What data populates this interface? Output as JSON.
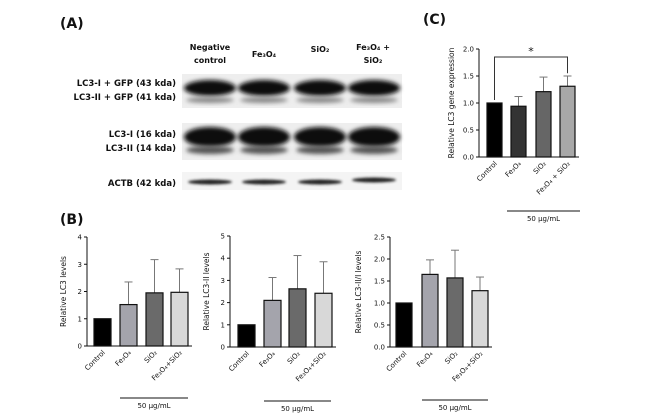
{
  "panels": {
    "a": "(A)",
    "b": "(B)",
    "c": "(C)"
  },
  "blot": {
    "columns": [
      "Negative",
      "control",
      "Fe₃O₄",
      "SiO₂",
      "Fe₃O₄ +",
      "SiO₂"
    ],
    "rows": [
      "LC3-I + GFP (43 kda)",
      "LC3-II + GFP (41 kda)",
      "LC3-I (16 kda)",
      "LC3-II (14 kda)",
      "ACTB (42 kda)"
    ]
  },
  "colors": {
    "control": "#000000",
    "fe_b": "#a4a4ac",
    "sio2_b": "#6a6a6a",
    "combo_b": "#d8d8d8",
    "fe_c": "#333333",
    "sio2_c": "#666666",
    "combo_c": "#a8a8a8"
  },
  "chart_data": [
    {
      "id": "c",
      "type": "bar",
      "title": "",
      "ylabel": "Relative LC3 gene expression",
      "ylim": [
        0,
        2.0
      ],
      "yticks": [
        "0.0",
        "0.5",
        "1.0",
        "1.5",
        "2.0"
      ],
      "categories": [
        "Control",
        "Fe₃O₄",
        "SiO₂",
        "Fe₃O₄ + SiO₂"
      ],
      "values": [
        1.0,
        0.94,
        1.21,
        1.31
      ],
      "errors": [
        0,
        0.18,
        0.27,
        0.19
      ],
      "significance": {
        "label": "*",
        "between": [
          "Control",
          "Fe₃O₄ + SiO₂"
        ]
      },
      "group_label": "50 μg/mL"
    },
    {
      "id": "b1",
      "type": "bar",
      "ylabel": "Relative LC3 levels",
      "ylim": [
        0,
        4
      ],
      "yticks": [
        "0",
        "1",
        "2",
        "3",
        "4"
      ],
      "categories": [
        "Control",
        "Fe₃O₄",
        "SiO₂",
        "Fe₃O₄+SiO₂"
      ],
      "values": [
        1.0,
        1.52,
        1.95,
        1.97
      ],
      "errors": [
        0,
        0.83,
        1.22,
        0.86
      ],
      "group_label": "50 μg/mL"
    },
    {
      "id": "b2",
      "type": "bar",
      "ylabel": "Relative LC3-II levels",
      "ylim": [
        0,
        5
      ],
      "yticks": [
        "0",
        "1",
        "2",
        "3",
        "4",
        "5"
      ],
      "categories": [
        "Control",
        "Fe₃O₄",
        "SiO₂",
        "Fe₃O₄+SiO₂"
      ],
      "values": [
        1.0,
        2.1,
        2.62,
        2.42
      ],
      "errors": [
        0,
        1.03,
        1.5,
        1.42
      ],
      "group_label": "50 μg/mL"
    },
    {
      "id": "b3",
      "type": "bar",
      "ylabel": "Relative LC3-II/I levels",
      "ylim": [
        0,
        2.5
      ],
      "yticks": [
        "0.0",
        "0.5",
        "1.0",
        "1.5",
        "2.0",
        "2.5"
      ],
      "categories": [
        "Control",
        "Fe₃O₄",
        "SiO₂",
        "Fe₃O₄+SiO₂"
      ],
      "values": [
        1.0,
        1.65,
        1.57,
        1.28
      ],
      "errors": [
        0,
        0.33,
        0.63,
        0.31
      ],
      "group_label": "50 μg/mL"
    }
  ]
}
